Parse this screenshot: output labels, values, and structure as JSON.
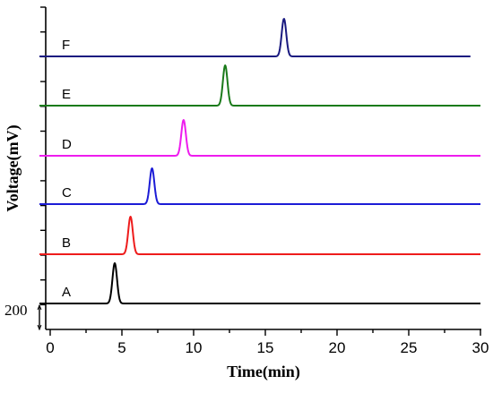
{
  "chart_data": {
    "type": "line",
    "title": "",
    "xlabel": "Time(min)",
    "ylabel": "Voltage(mV)",
    "xlim": [
      0,
      30
    ],
    "x_ticks": [
      "0",
      "5",
      "10",
      "15",
      "20",
      "25",
      "30"
    ],
    "scale_bar_label": "200",
    "scale_bar_mV": 200,
    "series": [
      {
        "name": "A",
        "color": "#000000",
        "peak_time": 4.5,
        "end_time": 30.0
      },
      {
        "name": "B",
        "color": "#ee1c1c",
        "peak_time": 5.6,
        "end_time": 30.0
      },
      {
        "name": "C",
        "color": "#1c1cd6",
        "peak_time": 7.1,
        "end_time": 30.0
      },
      {
        "name": "D",
        "color": "#ee1cee",
        "peak_time": 9.3,
        "end_time": 30.0
      },
      {
        "name": "E",
        "color": "#1a7a1a",
        "peak_time": 12.2,
        "end_time": 30.0
      },
      {
        "name": "F",
        "color": "#1a1a80",
        "peak_time": 16.3,
        "end_time": 29.3
      }
    ],
    "grid": false,
    "legend": "none"
  }
}
